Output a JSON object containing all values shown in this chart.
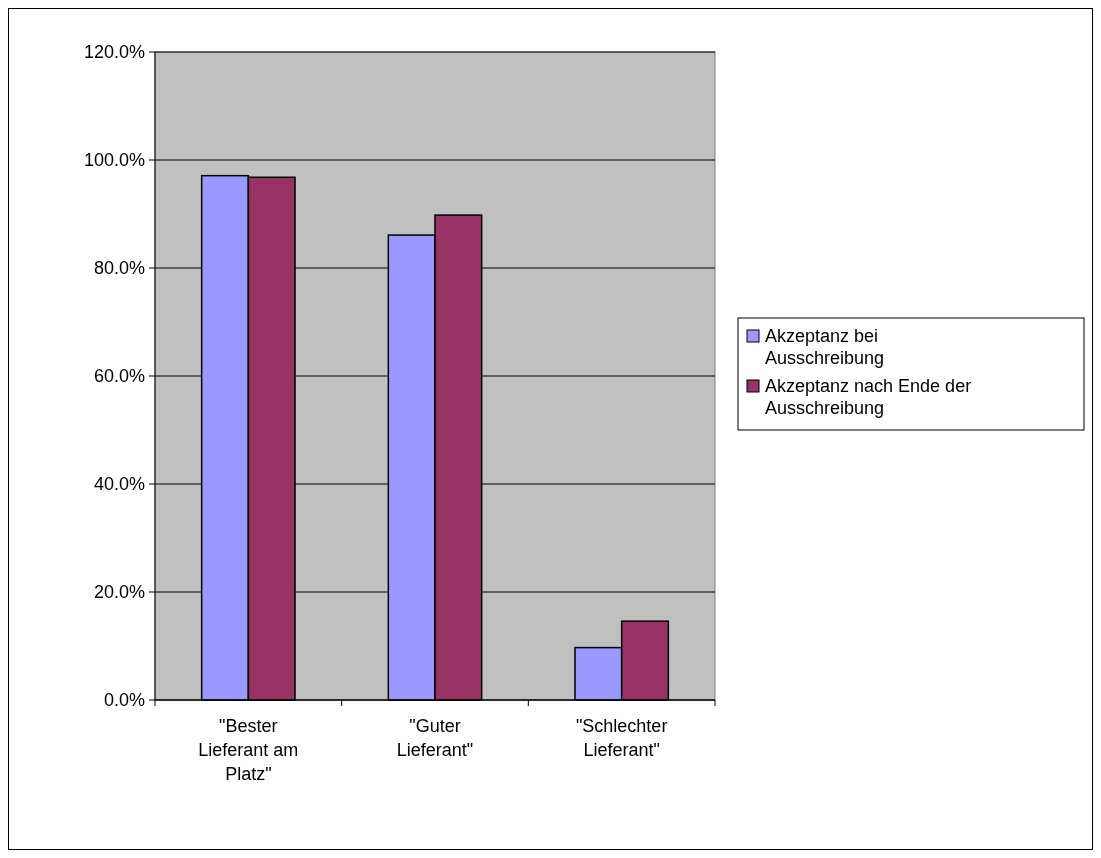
{
  "chart_data": {
    "type": "bar",
    "categories": [
      "\"Bester Lieferant am Platz\"",
      "\"Guter Lieferant\"",
      "\"Schlechter Lieferant\""
    ],
    "series": [
      {
        "name": "Akzeptanz bei Ausschreibung",
        "color": "#9999ff",
        "values": [
          97.1,
          86.1,
          9.7
        ]
      },
      {
        "name": "Akzeptanz nach Ende der Ausschreibung",
        "color": "#993366",
        "values": [
          96.8,
          89.8,
          14.6
        ]
      }
    ],
    "ylim": [
      0,
      120
    ],
    "yticks": [
      {
        "value": 0,
        "label": "0.0%"
      },
      {
        "value": 20,
        "label": "20.0%"
      },
      {
        "value": 40,
        "label": "40.0%"
      },
      {
        "value": 60,
        "label": "60.0%"
      },
      {
        "value": 80,
        "label": "80.0%"
      },
      {
        "value": 100,
        "label": "100.0%"
      },
      {
        "value": 120,
        "label": "120.0%"
      }
    ],
    "grid": "y",
    "legend": "right"
  }
}
